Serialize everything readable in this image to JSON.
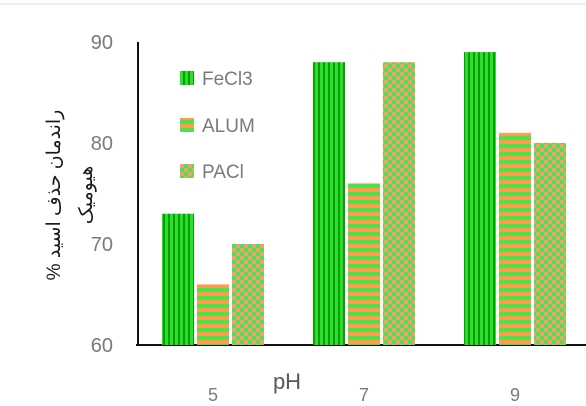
{
  "chart_data": {
    "type": "bar",
    "categories": [
      "5",
      "7",
      "9"
    ],
    "series": [
      {
        "name": "FeCl3",
        "values": [
          73,
          88,
          89
        ],
        "color": "#27e027",
        "pattern": "vertical-stripes"
      },
      {
        "name": "ALUM",
        "values": [
          66,
          76,
          81
        ],
        "color": "#ff9c4a",
        "pattern": "horizontal-stripes-green"
      },
      {
        "name": "PACl",
        "values": [
          70,
          88,
          80
        ],
        "color": "#66e066",
        "pattern": "checkerboard-green-orange"
      }
    ],
    "xlabel": "pH",
    "ylabel_line1": "% راندمان حذف اسید",
    "ylabel_line2": "هیومیک",
    "y_ticks": [
      "60",
      "70",
      "80",
      "90"
    ],
    "ylim": [
      60,
      90
    ],
    "grid": false,
    "legend_position": "top-left-inside"
  }
}
